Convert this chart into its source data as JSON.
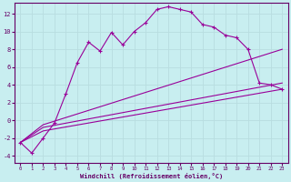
{
  "xlabel": "Windchill (Refroidissement éolien,°C)",
  "background_color": "#c8eef0",
  "grid_color": "#b8dde0",
  "line_color": "#990099",
  "xlim": [
    -0.5,
    23.5
  ],
  "ylim": [
    -4.8,
    13.2
  ],
  "xticks": [
    0,
    1,
    2,
    3,
    4,
    5,
    6,
    7,
    8,
    9,
    10,
    11,
    12,
    13,
    14,
    15,
    16,
    17,
    18,
    19,
    20,
    21,
    22,
    23
  ],
  "yticks": [
    -4,
    -2,
    0,
    2,
    4,
    6,
    8,
    10,
    12
  ],
  "line1_x": [
    0,
    1,
    2,
    3,
    4,
    5,
    6,
    7,
    8,
    9,
    10,
    11,
    12,
    13,
    14,
    15,
    16,
    17,
    18,
    19,
    20,
    21,
    22,
    23
  ],
  "line1_y": [
    -2.5,
    -3.7,
    -2.0,
    -0.3,
    3.0,
    6.5,
    8.8,
    7.8,
    9.9,
    8.5,
    10.0,
    11.0,
    12.5,
    12.8,
    12.5,
    12.2,
    10.8,
    10.5,
    9.6,
    9.3,
    8.0,
    4.2,
    4.0,
    3.5
  ],
  "line2_x": [
    0,
    2,
    23
  ],
  "line2_y": [
    -2.5,
    -0.5,
    8.0
  ],
  "line3_x": [
    0,
    2,
    23
  ],
  "line3_y": [
    -2.5,
    -0.8,
    4.2
  ],
  "line4_x": [
    0,
    2,
    23
  ],
  "line4_y": [
    -2.5,
    -1.2,
    3.5
  ]
}
